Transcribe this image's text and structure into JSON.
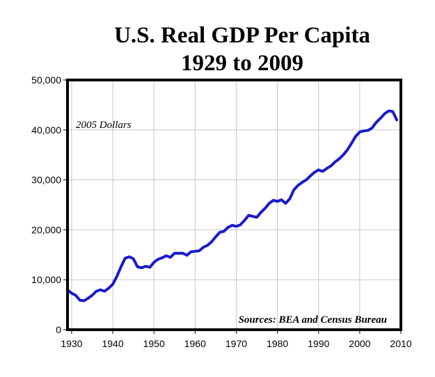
{
  "chart_data": {
    "type": "line",
    "title": "U.S. Real GDP Per Capita",
    "subtitle": "1929 to 2009",
    "xlabel": "",
    "ylabel": "",
    "xlim": [
      1929,
      2010
    ],
    "ylim": [
      0,
      50000
    ],
    "x_ticks": [
      1930,
      1940,
      1950,
      1960,
      1970,
      1980,
      1990,
      2000,
      2010
    ],
    "y_ticks": [
      0,
      10000,
      20000,
      30000,
      40000,
      50000
    ],
    "y_tick_labels": [
      "0",
      "10,000",
      "20,000",
      "30,000",
      "40,000",
      "50,000"
    ],
    "grid": true,
    "annotations": {
      "units": "2005 Dollars",
      "sources": "Sources: BEA and Census Bureau"
    },
    "line_color": "#1a1acc",
    "series": [
      {
        "x": [
          1929,
          1930,
          1931,
          1932,
          1933,
          1934,
          1935,
          1936,
          1937,
          1938,
          1939,
          1940,
          1941,
          1942,
          1943,
          1944,
          1945,
          1946,
          1947,
          1948,
          1949,
          1950,
          1951,
          1952,
          1953,
          1954,
          1955,
          1956,
          1957,
          1958,
          1959,
          1960,
          1961,
          1962,
          1963,
          1964,
          1965,
          1966,
          1967,
          1968,
          1969,
          1970,
          1971,
          1972,
          1973,
          1974,
          1975,
          1976,
          1977,
          1978,
          1979,
          1980,
          1981,
          1982,
          1983,
          1984,
          1985,
          1986,
          1987,
          1988,
          1989,
          1990,
          1991,
          1992,
          1993,
          1994,
          1995,
          1996,
          1997,
          1998,
          1999,
          2000,
          2001,
          2002,
          2003,
          2004,
          2005,
          2006,
          2007,
          2008,
          2009
        ],
        "values": [
          8000,
          7300,
          6900,
          5900,
          5800,
          6300,
          6900,
          7700,
          8000,
          7700,
          8300,
          9100,
          10700,
          12600,
          14300,
          14600,
          14200,
          12600,
          12400,
          12700,
          12500,
          13500,
          14100,
          14400,
          14800,
          14500,
          15300,
          15300,
          15300,
          14900,
          15600,
          15700,
          15800,
          16500,
          16900,
          17600,
          18600,
          19500,
          19700,
          20500,
          20900,
          20700,
          21000,
          21900,
          22900,
          22700,
          22500,
          23500,
          24300,
          25300,
          25900,
          25700,
          26000,
          25300,
          26200,
          28000,
          28900,
          29500,
          30000,
          30800,
          31500,
          32000,
          31700,
          32300,
          32800,
          33600,
          34200,
          35000,
          36000,
          37300,
          38700,
          39600,
          39800,
          39900,
          40400,
          41500,
          42300,
          43200,
          43800,
          43700,
          42000
        ]
      }
    ]
  }
}
